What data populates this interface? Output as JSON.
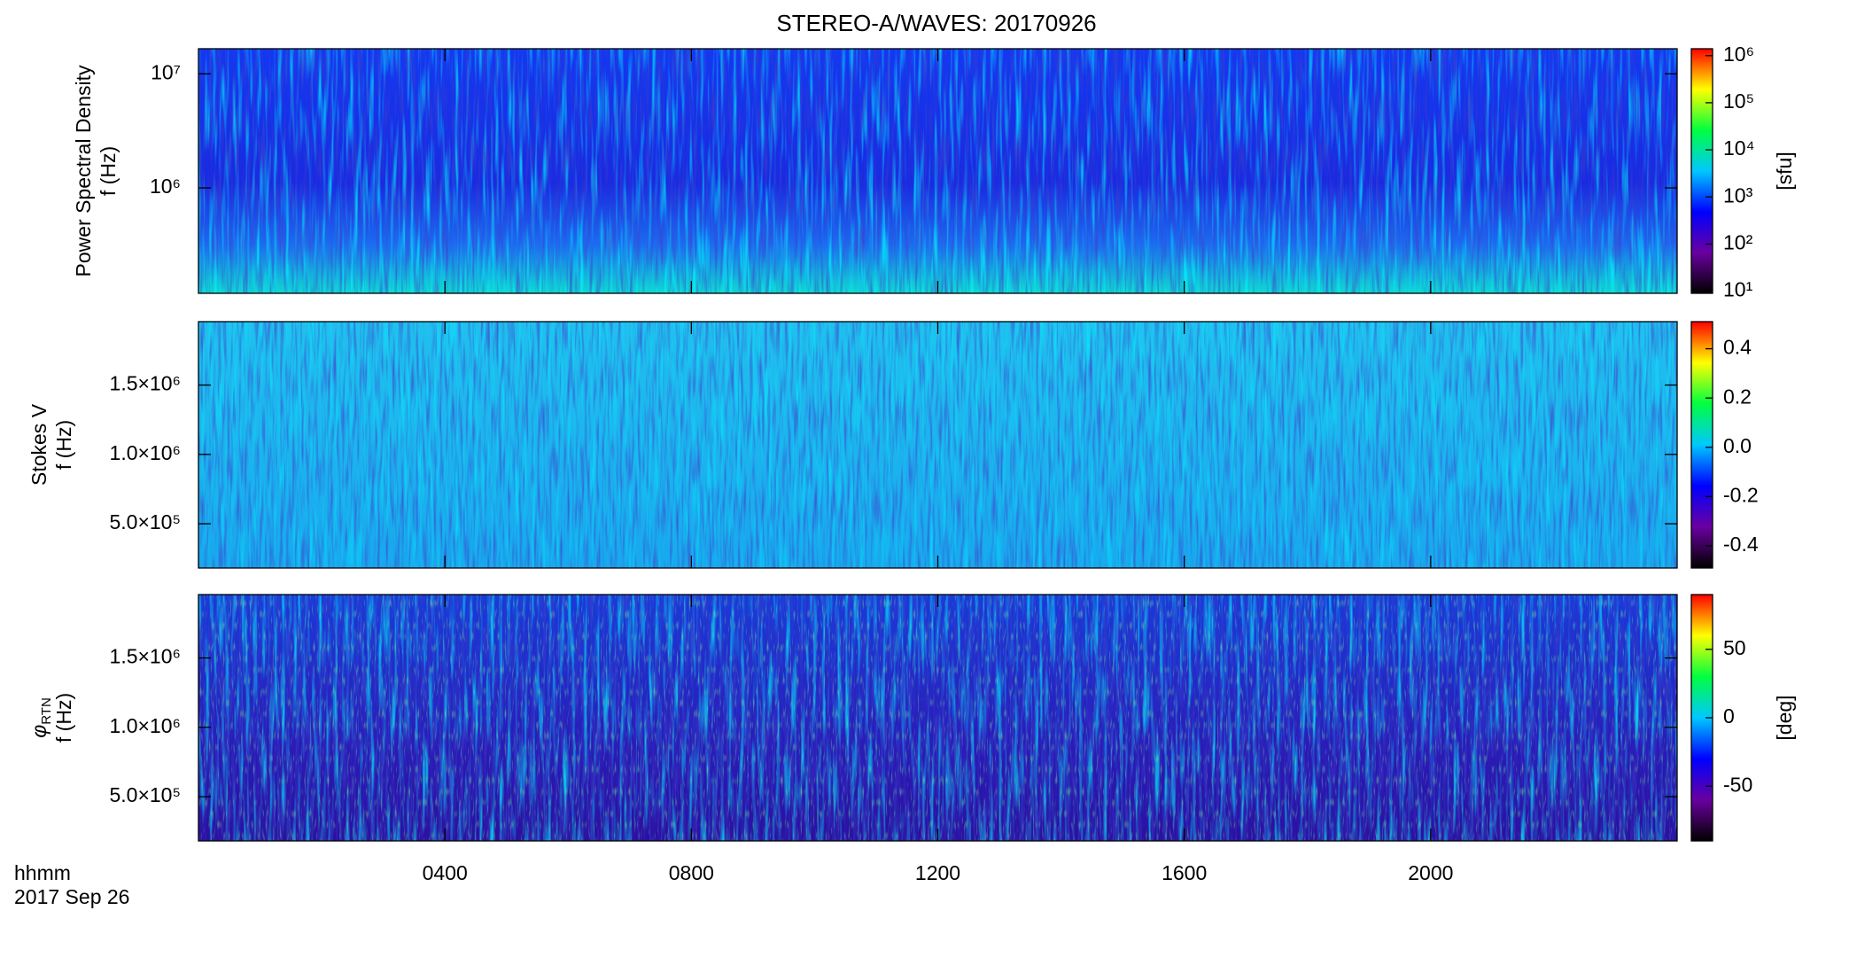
{
  "title": "STEREO-A/WAVES: 20170926",
  "xlabel": [
    "hhmm",
    "2017 Sep 26"
  ],
  "colormap": [
    "#000000",
    "#6a00a0",
    "#0000ff",
    "#00c8ff",
    "#00ff40",
    "#ffff00",
    "#ff0000"
  ],
  "chart_data": [
    {
      "type": "spectrogram",
      "ylabel": [
        "Power Spectral Density",
        "f (Hz)"
      ],
      "ylog": true,
      "ylim": [
        119000,
        16600000
      ],
      "yticks": [
        {
          "value": 1000000,
          "label": "10⁶"
        },
        {
          "value": 10000000,
          "label": "10⁷"
        }
      ],
      "colorbar": {
        "label": "[sfu]",
        "log": true,
        "lim": [
          9,
          1400000
        ],
        "ticks": [
          {
            "value": 10,
            "label": "10¹"
          },
          {
            "value": 100,
            "label": "10²"
          },
          {
            "value": 1000,
            "label": "10³"
          },
          {
            "value": 10000,
            "label": "10⁴"
          },
          {
            "value": 100000,
            "label": "10⁵"
          },
          {
            "value": 1000000,
            "label": "10⁶"
          }
        ]
      }
    },
    {
      "type": "spectrogram",
      "ylabel": [
        "Stokes V",
        "f (Hz)"
      ],
      "ylog": false,
      "ylim": [
        181000,
        1957000
      ],
      "yticks": [
        {
          "value": 500000,
          "label": "5.0×10⁵"
        },
        {
          "value": 1000000,
          "label": "1.0×10⁶"
        },
        {
          "value": 1500000,
          "label": "1.5×10⁶"
        }
      ],
      "colorbar": {
        "log": false,
        "lim": [
          -0.49,
          0.51
        ],
        "ticks": [
          -0.4,
          -0.2,
          {
            "value": 0,
            "label": "0.0"
          },
          0.2,
          0.4
        ]
      }
    },
    {
      "type": "spectrogram",
      "ylabel": [
        {
          "symbol": "φ",
          "subscript": "RTN"
        },
        "f (Hz)"
      ],
      "ylog": false,
      "ylim": [
        181000,
        1957000
      ],
      "yticks": [
        {
          "value": 500000,
          "label": "5.0×10⁵"
        },
        {
          "value": 1000000,
          "label": "1.0×10⁶"
        },
        {
          "value": 1500000,
          "label": "1.5×10⁶"
        }
      ],
      "colorbar": {
        "label": "[deg]",
        "log": false,
        "lim": [
          -90,
          90
        ],
        "ticks": [
          -50,
          0,
          50
        ]
      },
      "xlim": [
        0,
        24
      ],
      "xticks": [
        {
          "value": 4,
          "label": "0400"
        },
        {
          "value": 8,
          "label": "0800"
        },
        {
          "value": 12,
          "label": "1200"
        },
        {
          "value": 16,
          "label": "1600"
        },
        {
          "value": 20,
          "label": "2000"
        }
      ]
    }
  ]
}
